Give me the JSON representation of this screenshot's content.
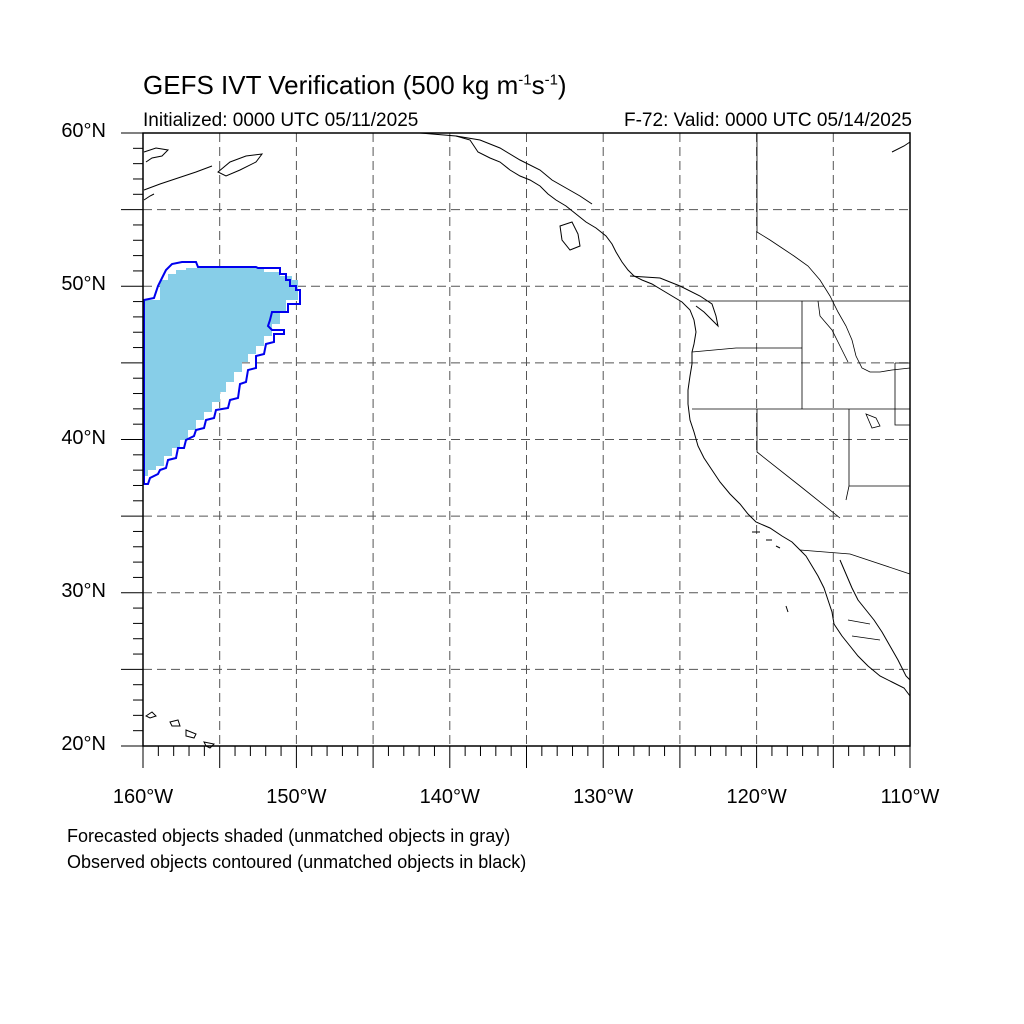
{
  "header": {
    "title": "GEFS IVT Verification (500 kg m",
    "title_exp1": "-1",
    "title_mid": "s",
    "title_exp2": "-1",
    "title_end": ")",
    "initialized": "Initialized: 0000 UTC 05/11/2025",
    "valid": "F-72: Valid: 0000 UTC 05/14/2025"
  },
  "map": {
    "projection": "cylindrical-equidistant",
    "lon_range": [
      -160,
      -110
    ],
    "lat_range": [
      20,
      60
    ],
    "lat_labels": [
      {
        "lat": 60,
        "text": "60°N"
      },
      {
        "lat": 50,
        "text": "50°N"
      },
      {
        "lat": 40,
        "text": "40°N"
      },
      {
        "lat": 30,
        "text": "30°N"
      },
      {
        "lat": 20,
        "text": "20°N"
      }
    ],
    "lon_labels": [
      {
        "lon": -160,
        "text": "160°W"
      },
      {
        "lon": -150,
        "text": "150°W"
      },
      {
        "lon": -140,
        "text": "140°W"
      },
      {
        "lon": -130,
        "text": "130°W"
      },
      {
        "lon": -120,
        "text": "120°W"
      },
      {
        "lon": -110,
        "text": "110°W"
      }
    ],
    "grid_spacing_deg": 5,
    "colors": {
      "forecast_fill": "#87CEE8",
      "observed_contour": "#0000EE",
      "coast": "#000000",
      "grid": "#555555"
    }
  },
  "footnotes": {
    "line1": "Forecasted objects shaded (unmatched objects in gray)",
    "line2": "Observed objects contoured (unmatched objects in black)"
  }
}
